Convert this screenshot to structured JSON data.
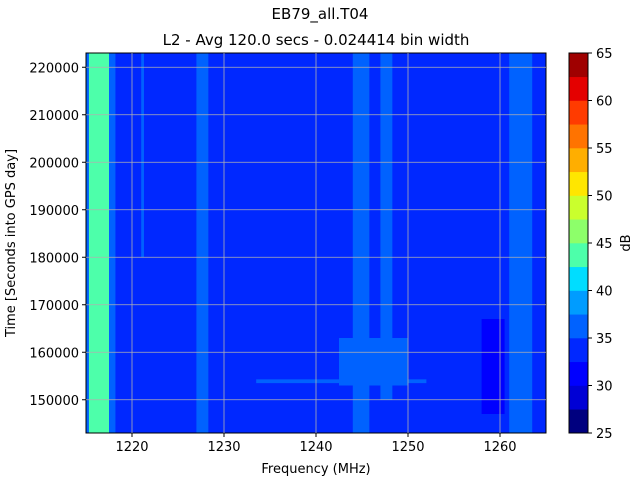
{
  "chart_data": {
    "type": "heatmap",
    "title": "EB79_all.T04",
    "subtitle": "L2 - Avg 120.0 secs - 0.024414 bin width",
    "xlabel": "Frequency (MHz)",
    "ylabel": "Time [Seconds into GPS day]",
    "colorbar_label": "dB",
    "xlim": [
      1215,
      1265
    ],
    "ylim": [
      143000,
      223000
    ],
    "x_ticks": [
      1220,
      1230,
      1240,
      1250,
      1260
    ],
    "y_ticks": [
      150000,
      160000,
      170000,
      180000,
      190000,
      200000,
      210000,
      220000
    ],
    "x_tick_labels": [
      "1220",
      "1230",
      "1240",
      "1250",
      "1260"
    ],
    "y_tick_labels": [
      "150000",
      "160000",
      "170000",
      "180000",
      "190000",
      "200000",
      "210000",
      "220000"
    ],
    "grid": true,
    "colorbar": {
      "min": 25,
      "max": 65,
      "step": 2.5,
      "tick_values": [
        25,
        30,
        35,
        40,
        45,
        50,
        55,
        60,
        65
      ],
      "tick_labels": [
        "25",
        "30",
        "35",
        "40",
        "45",
        "50",
        "55",
        "60",
        "65"
      ],
      "colors": [
        "#00007f",
        "#0000d5",
        "#0000ff",
        "#0028ff",
        "#0062ff",
        "#009cff",
        "#00ddff",
        "#4dffaa",
        "#8dff6a",
        "#caff2d",
        "#ffe600",
        "#ffae00",
        "#ff7300",
        "#ff3b00",
        "#e40000",
        "#9f0000"
      ]
    },
    "background_db": 34,
    "features": [
      {
        "freq": [
          1215.3,
          1217.5
        ],
        "time": [
          143000,
          223000
        ],
        "db": 43,
        "desc": "strong band"
      },
      {
        "freq": [
          1215.0,
          1215.3
        ],
        "time": [
          143000,
          223000
        ],
        "db": 37
      },
      {
        "freq": [
          1217.5,
          1218.2
        ],
        "time": [
          143000,
          223000
        ],
        "db": 37
      },
      {
        "freq": [
          1221.0,
          1221.3
        ],
        "time": [
          180000,
          223000
        ],
        "db": 37
      },
      {
        "freq": [
          1227.0,
          1228.3
        ],
        "time": [
          143000,
          223000
        ],
        "db": 37
      },
      {
        "freq": [
          1244.0,
          1245.8
        ],
        "time": [
          143000,
          223000
        ],
        "db": 37
      },
      {
        "freq": [
          1247.0,
          1248.3
        ],
        "time": [
          150000,
          223000
        ],
        "db": 37
      },
      {
        "freq": [
          1242.5,
          1250.0
        ],
        "time": [
          153000,
          163000
        ],
        "db": 37
      },
      {
        "freq": [
          1233.5,
          1252.0
        ],
        "time": [
          153500,
          154300
        ],
        "db": 37
      },
      {
        "freq": [
          1261.0,
          1263.5
        ],
        "time": [
          143000,
          223000
        ],
        "db": 37
      },
      {
        "freq": [
          1258.0,
          1260.5
        ],
        "time": [
          147000,
          167000
        ],
        "db": 31
      }
    ]
  }
}
